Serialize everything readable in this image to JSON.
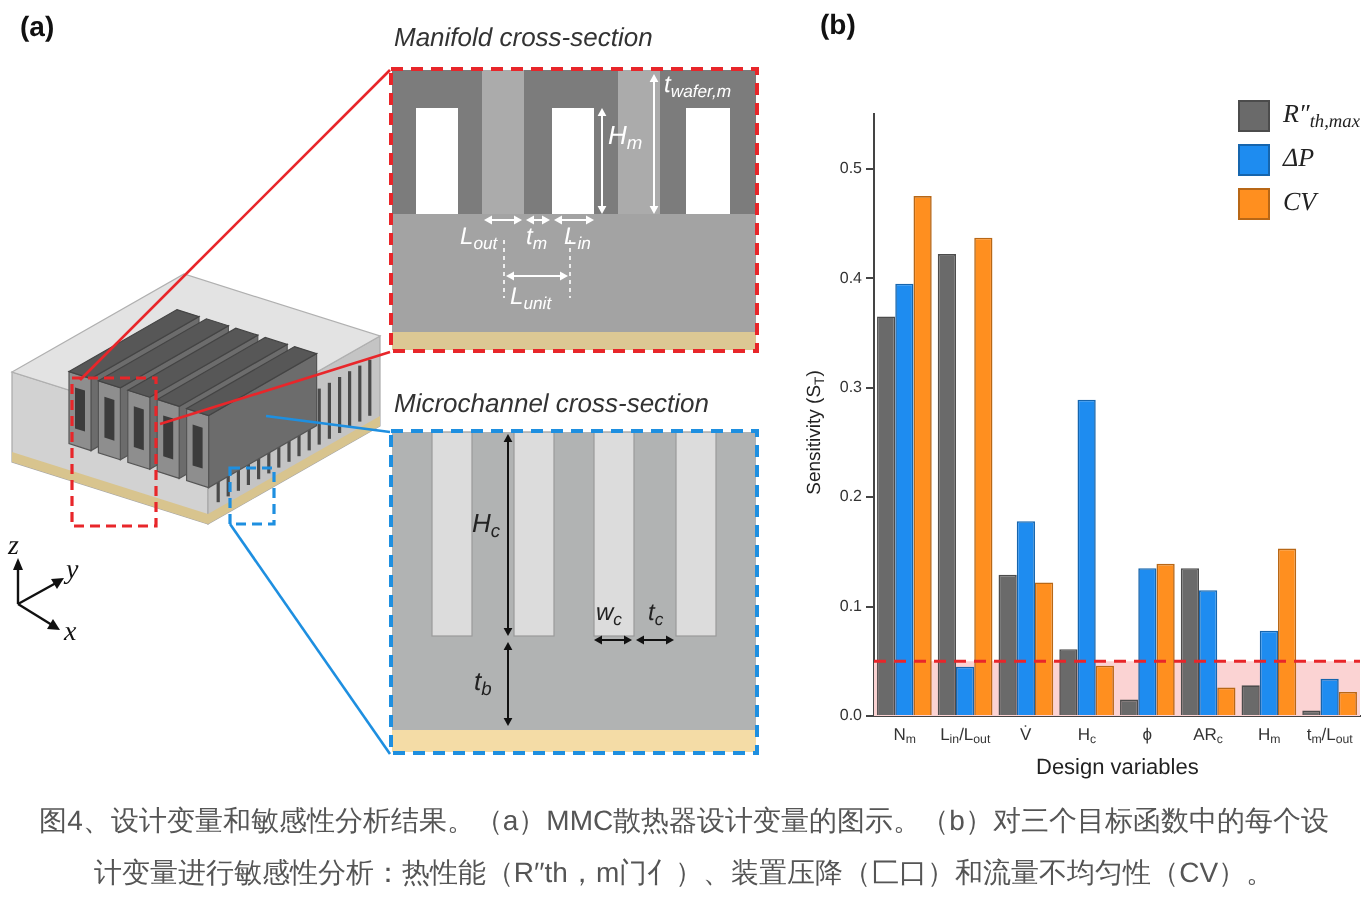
{
  "chart_data": [
    {
      "type": "other",
      "title": "(a)",
      "annotations": [
        "Manifold cross-section",
        "t$_{wafer,m}$",
        "H$_{m}$",
        "L$_{out}$",
        "t$_{m}$",
        "L$_{in}$",
        "L$_{unit}$",
        "Microchannel cross-section",
        "H$_{c}$",
        "w$_{c}$",
        "t$_{c}$",
        "t$_{b}$",
        "z",
        "y",
        "x",
        "图4、设计变量和敏感性分析结果。（a）MMC散热器设计变量的图示。（b）对三个目标函数中的每个设计变量进行敏感性分析：热性能（R′′th，m门亻）、装置压降（匚口）和流量不均匀性（CV）。"
      ]
    },
    {
      "type": "bar",
      "title": "(b)",
      "xlabel": "Design variables",
      "ylabel": "Sensitivity (S$_{T}$)",
      "categories": [
        "N$_{m}$",
        "L$_{in}$/L$_{out}$",
        "V̇",
        "H$_{c}$",
        "ϕ",
        "AR$_{c}$",
        "H$_{m}$",
        "t$_{m}$/L$_{out}$"
      ],
      "series": [
        {
          "name": "R″$_{th,max}$",
          "color": "#6a6a6a",
          "values": [
            0.365,
            0.422,
            0.129,
            0.061,
            0.015,
            0.135,
            0.028,
            0.005
          ]
        },
        {
          "name": "ΔP",
          "color": "#1e8cf0",
          "values": [
            0.395,
            0.045,
            0.178,
            0.289,
            0.135,
            0.115,
            0.078,
            0.034
          ]
        },
        {
          "name": "CV",
          "color": "#ff8f1f",
          "values": [
            0.475,
            0.437,
            0.122,
            0.046,
            0.139,
            0.026,
            0.153,
            0.022
          ]
        }
      ],
      "ylim": [
        0,
        0.55
      ],
      "yticks": [
        {
          "value": 0,
          "label": "0.0"
        },
        0.1,
        0.2,
        0.3,
        0.4,
        0.5
      ],
      "ref_lines": [
        {
          "axis": "y",
          "value": 0.05,
          "color": "#e8262a",
          "line_style": "dashed"
        }
      ],
      "bands": [
        {
          "axis": "y",
          "from": 0,
          "to": 0.05,
          "color": "#fbd3d3"
        }
      ],
      "legend": "top right"
    }
  ]
}
